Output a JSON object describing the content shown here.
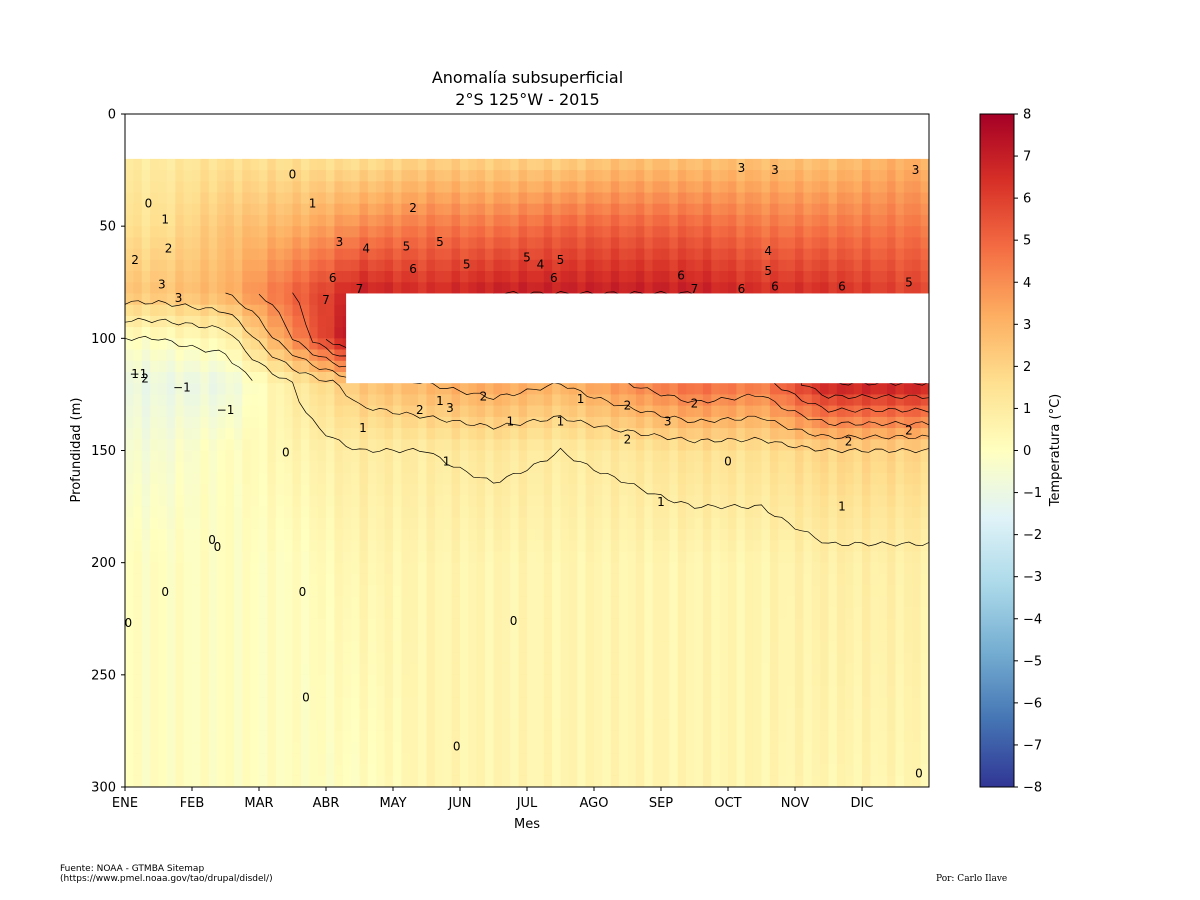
{
  "chart_data": {
    "type": "heatmap",
    "title_line1": "Anomalía subsuperficial",
    "title_line2": "2°S 125°W - 2015",
    "xlabel": "Mes",
    "ylabel": "Profundidad (m)",
    "x_ticks": [
      "ENE",
      "FEB",
      "MAR",
      "ABR",
      "MAY",
      "JUN",
      "JUL",
      "AGO",
      "SEP",
      "OCT",
      "NOV",
      "DIC"
    ],
    "y_ticks": [
      0,
      50,
      100,
      150,
      200,
      250,
      300
    ],
    "ylim": [
      300,
      0
    ],
    "y_inverted": true,
    "colorbar": {
      "label": "Temperatura (°C)",
      "range": [
        -8,
        8
      ],
      "ticks": [
        8,
        7,
        6,
        5,
        4,
        3,
        2,
        1,
        0,
        -1,
        -2,
        -3,
        -4,
        -5,
        -6,
        -7,
        -8
      ],
      "colormap": "RdYlBu_r"
    },
    "contour_levels": [
      -1,
      0,
      1,
      2,
      3,
      4,
      5,
      6,
      7
    ],
    "no_data_regions": [
      {
        "depth_from": 0,
        "depth_to": 20,
        "month_from": 0,
        "month_to": 12
      },
      {
        "depth_from": 80,
        "depth_to": 120,
        "month_from": 3.3,
        "month_to": 12
      }
    ],
    "depth_profiles": [
      {
        "months": "ENE",
        "depth": [
          20,
          50,
          80,
          100,
          120,
          150,
          200,
          300
        ],
        "anomaly": [
          1.0,
          1.5,
          2.5,
          0.0,
          -1.0,
          -0.5,
          0.0,
          0.0
        ]
      },
      {
        "months": "FEB",
        "depth": [
          20,
          50,
          80,
          100,
          120,
          150,
          200,
          300
        ],
        "anomaly": [
          1.5,
          2.5,
          3.0,
          0.5,
          -1.0,
          0.0,
          0.0,
          0.0
        ]
      },
      {
        "months": "MAR",
        "depth": [
          20,
          50,
          80,
          100,
          120,
          150,
          200,
          300
        ],
        "anomaly": [
          1.5,
          3.0,
          5.0,
          4.0,
          1.0,
          0.5,
          0.0,
          0.0
        ]
      },
      {
        "months": "ABR",
        "depth": [
          20,
          50,
          80,
          100,
          120,
          150,
          200,
          300
        ],
        "anomaly": [
          1.5,
          4.0,
          7.0,
          8.0,
          2.5,
          1.0,
          0.5,
          0.0
        ]
      },
      {
        "months": "MAY",
        "depth": [
          20,
          50,
          80,
          120,
          150,
          200,
          300
        ],
        "anomaly": [
          2.0,
          4.5,
          6.5,
          3.0,
          1.0,
          0.5,
          0.5
        ]
      },
      {
        "months": "JUN",
        "depth": [
          20,
          50,
          80,
          120,
          150,
          200,
          300
        ],
        "anomaly": [
          2.0,
          4.5,
          7.0,
          3.5,
          1.2,
          0.5,
          0.5
        ]
      },
      {
        "months": "JUL",
        "depth": [
          20,
          50,
          80,
          120,
          150,
          200,
          300
        ],
        "anomaly": [
          2.0,
          5.0,
          7.0,
          3.0,
          1.0,
          0.5,
          0.5
        ]
      },
      {
        "months": "AGO",
        "depth": [
          20,
          50,
          80,
          120,
          150,
          200,
          300
        ],
        "anomaly": [
          2.5,
          5.0,
          7.0,
          4.0,
          1.2,
          0.5,
          0.5
        ]
      },
      {
        "months": "SEP",
        "depth": [
          20,
          50,
          80,
          120,
          150,
          200,
          300
        ],
        "anomaly": [
          2.5,
          5.0,
          7.0,
          5.0,
          1.5,
          0.5,
          0.5
        ]
      },
      {
        "months": "OCT",
        "depth": [
          20,
          50,
          80,
          120,
          150,
          200,
          300
        ],
        "anomaly": [
          2.5,
          4.5,
          6.5,
          4.5,
          1.5,
          0.5,
          0.5
        ]
      },
      {
        "months": "NOV",
        "depth": [
          20,
          50,
          80,
          120,
          150,
          200,
          300
        ],
        "anomaly": [
          2.5,
          4.5,
          6.5,
          7.0,
          2.0,
          0.8,
          0.5
        ]
      },
      {
        "months": "DIC",
        "depth": [
          20,
          50,
          80,
          120,
          150,
          200,
          300
        ],
        "anomaly": [
          3.0,
          4.5,
          6.0,
          7.0,
          2.0,
          0.8,
          0.5
        ]
      }
    ],
    "contour_labels": [
      {
        "text": "0",
        "month": 0.35,
        "depth": 40
      },
      {
        "text": "1",
        "month": 0.6,
        "depth": 47
      },
      {
        "text": "2",
        "month": 0.15,
        "depth": 65
      },
      {
        "text": "2",
        "month": 0.65,
        "depth": 60
      },
      {
        "text": "3",
        "month": 0.55,
        "depth": 76
      },
      {
        "text": "3",
        "month": 0.8,
        "depth": 82
      },
      {
        "text": "1",
        "month": 0.15,
        "depth": 116
      },
      {
        "text": "2",
        "month": 0.3,
        "depth": 118
      },
      {
        "text": "-1",
        "month": 0.2,
        "depth": 116
      },
      {
        "text": "-1",
        "month": 0.85,
        "depth": 122
      },
      {
        "text": "-1",
        "month": 1.5,
        "depth": 132
      },
      {
        "text": "0",
        "month": 1.3,
        "depth": 190
      },
      {
        "text": "0",
        "month": 1.38,
        "depth": 193
      },
      {
        "text": "0",
        "month": 0.6,
        "depth": 213
      },
      {
        "text": "0",
        "month": 0.05,
        "depth": 227
      },
      {
        "text": "0",
        "month": 2.65,
        "depth": 213
      },
      {
        "text": "0",
        "month": 2.7,
        "depth": 260
      },
      {
        "text": "0",
        "month": 2.4,
        "depth": 151
      },
      {
        "text": "0",
        "month": 2.5,
        "depth": 27
      },
      {
        "text": "1",
        "month": 2.8,
        "depth": 40
      },
      {
        "text": "2",
        "month": 4.3,
        "depth": 42
      },
      {
        "text": "3",
        "month": 3.2,
        "depth": 57
      },
      {
        "text": "4",
        "month": 3.6,
        "depth": 60
      },
      {
        "text": "5",
        "month": 4.2,
        "depth": 59
      },
      {
        "text": "5",
        "month": 4.7,
        "depth": 57
      },
      {
        "text": "5",
        "month": 5.1,
        "depth": 67
      },
      {
        "text": "6",
        "month": 4.3,
        "depth": 69
      },
      {
        "text": "6",
        "month": 3.1,
        "depth": 73
      },
      {
        "text": "7",
        "month": 3.5,
        "depth": 78
      },
      {
        "text": "7",
        "month": 3.0,
        "depth": 83
      },
      {
        "text": "1",
        "month": 4.7,
        "depth": 128
      },
      {
        "text": "1",
        "month": 3.55,
        "depth": 140
      },
      {
        "text": "2",
        "month": 4.4,
        "depth": 132
      },
      {
        "text": "3",
        "month": 4.85,
        "depth": 131
      },
      {
        "text": "1",
        "month": 4.8,
        "depth": 155
      },
      {
        "text": "2",
        "month": 5.35,
        "depth": 126
      },
      {
        "text": "1",
        "month": 5.75,
        "depth": 137
      },
      {
        "text": "1",
        "month": 6.5,
        "depth": 137
      },
      {
        "text": "1",
        "month": 6.8,
        "depth": 127
      },
      {
        "text": "0",
        "month": 5.8,
        "depth": 226
      },
      {
        "text": "0",
        "month": 4.95,
        "depth": 282
      },
      {
        "text": "5",
        "month": 6.0,
        "depth": 64
      },
      {
        "text": "5",
        "month": 6.5,
        "depth": 65
      },
      {
        "text": "4",
        "month": 6.2,
        "depth": 67
      },
      {
        "text": "6",
        "month": 6.4,
        "depth": 73
      },
      {
        "text": "3",
        "month": 9.2,
        "depth": 24
      },
      {
        "text": "3",
        "month": 9.7,
        "depth": 25
      },
      {
        "text": "3",
        "month": 11.8,
        "depth": 25
      },
      {
        "text": "4",
        "month": 9.6,
        "depth": 61
      },
      {
        "text": "5",
        "month": 9.6,
        "depth": 70
      },
      {
        "text": "6",
        "month": 8.3,
        "depth": 72
      },
      {
        "text": "6",
        "month": 9.2,
        "depth": 78
      },
      {
        "text": "6",
        "month": 9.7,
        "depth": 77
      },
      {
        "text": "6",
        "month": 10.7,
        "depth": 77
      },
      {
        "text": "5",
        "month": 11.7,
        "depth": 75
      },
      {
        "text": "7",
        "month": 8.5,
        "depth": 78
      },
      {
        "text": "2",
        "month": 8.5,
        "depth": 129
      },
      {
        "text": "2",
        "month": 7.5,
        "depth": 130
      },
      {
        "text": "2",
        "month": 7.5,
        "depth": 145
      },
      {
        "text": "3",
        "month": 8.1,
        "depth": 137
      },
      {
        "text": "1",
        "month": 8.0,
        "depth": 173
      },
      {
        "text": "0",
        "month": 9.0,
        "depth": 155
      },
      {
        "text": "2",
        "month": 10.8,
        "depth": 146
      },
      {
        "text": "2",
        "month": 11.7,
        "depth": 141
      },
      {
        "text": "1",
        "month": 10.7,
        "depth": 175
      },
      {
        "text": "0",
        "month": 11.85,
        "depth": 294
      }
    ],
    "source_note": "Fuente: NOAA - GTMBA Sitemap",
    "source_url": "(https://www.pmel.noaa.gov/tao/drupal/disdel/)",
    "author": "Por: Carlo Ilave"
  }
}
